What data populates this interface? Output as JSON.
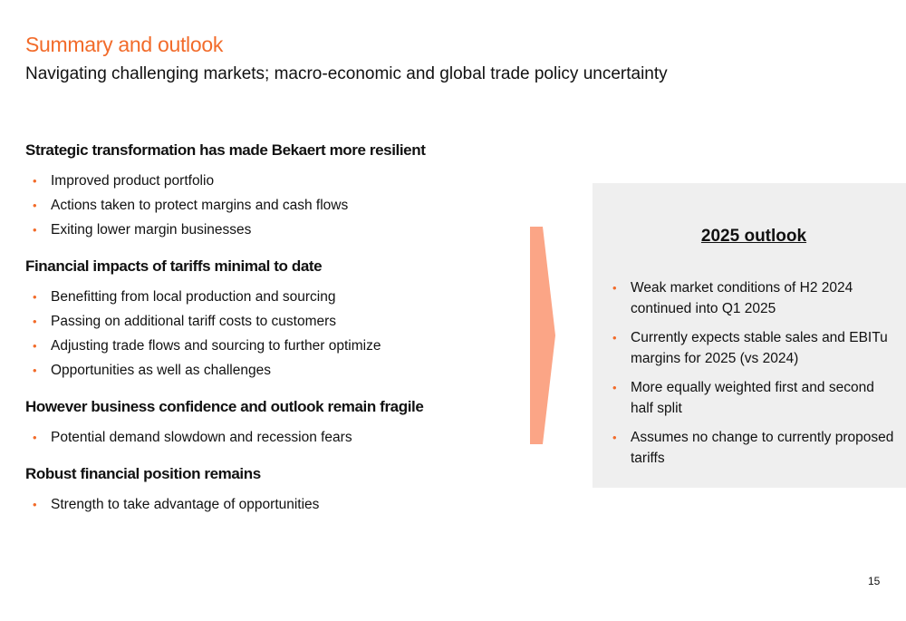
{
  "title": "Summary and outlook",
  "subtitle": "Navigating challenging markets; macro-economic and global trade policy uncertainty",
  "sections": [
    {
      "heading": "Strategic transformation has made Bekaert more resilient",
      "bullets": [
        "Improved product portfolio",
        "Actions taken to protect margins and cash flows",
        "Exiting lower margin businesses"
      ]
    },
    {
      "heading": "Financial impacts of tariffs minimal to date",
      "bullets": [
        "Benefitting from local production and sourcing",
        "Passing on additional tariff costs to customers",
        "Adjusting trade flows and sourcing to further optimize",
        "Opportunities as well as challenges"
      ]
    },
    {
      "heading": "However business confidence and outlook remain fragile",
      "bullets": [
        "Potential demand slowdown and recession fears"
      ]
    },
    {
      "heading": "Robust financial position remains",
      "bullets": [
        "Strength to take advantage of opportunities"
      ]
    }
  ],
  "outlook": {
    "title": "2025 outlook",
    "bullets": [
      "Weak market conditions of H2 2024 continued into Q1 2025",
      "Currently expects stable sales and EBITu margins for 2025 (vs 2024)",
      "More equally weighted first and second half split",
      "Assumes no change to currently proposed tariffs"
    ]
  },
  "page_number": "15",
  "bullet_glyph": "•",
  "colors": {
    "accent": "#f26b2a",
    "arrow": "#fba586",
    "panel": "#efefef",
    "text": "#111111"
  }
}
